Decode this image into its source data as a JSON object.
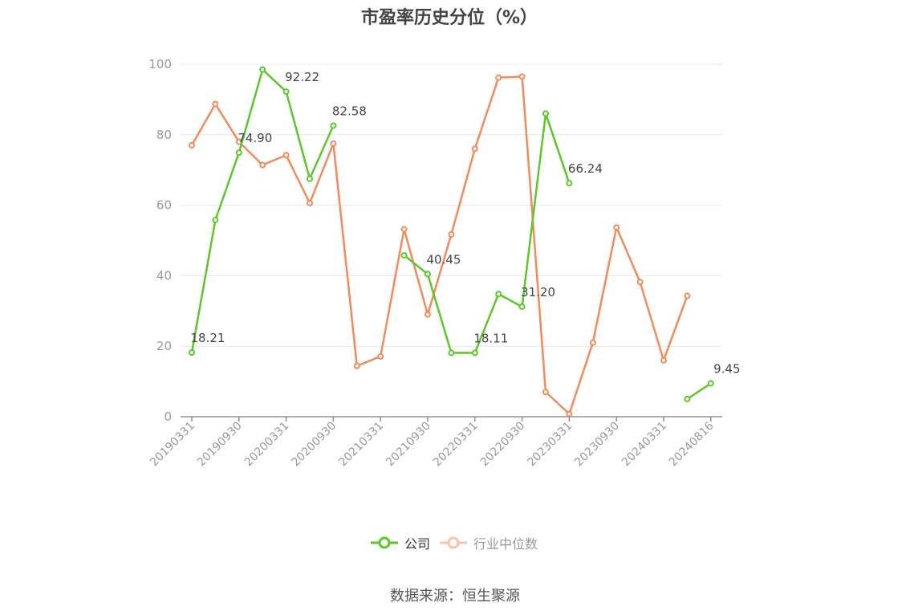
{
  "chart_data": {
    "type": "line",
    "title": "市盈率历史分位（%）",
    "xlabel": "",
    "ylabel": "",
    "ylim": [
      0,
      100
    ],
    "yticks": [
      "0",
      "20",
      "40",
      "60",
      "80",
      "100"
    ],
    "grid": true,
    "legend_position": "bottom",
    "categories": [
      "20190331",
      "20190630",
      "20190930",
      "20191231",
      "20200331",
      "20200630",
      "20200930",
      "20201231",
      "20210331",
      "20210630",
      "20210930",
      "20211231",
      "20220331",
      "20220630",
      "20220930",
      "20221231",
      "20230331",
      "20230630",
      "20230930",
      "20231231",
      "20240331",
      "20240630",
      "20240816"
    ],
    "x_tick_labels": [
      "20190331",
      "20190930",
      "20200331",
      "20200930",
      "20210331",
      "20210930",
      "20220331",
      "20220930",
      "20230331",
      "20230930",
      "20240331",
      "20240816"
    ],
    "series": [
      {
        "name": "公司",
        "color": "#5cc72a",
        "values": [
          18.21,
          55.8,
          74.9,
          98.5,
          92.22,
          67.5,
          82.58,
          null,
          null,
          45.8,
          40.45,
          18.1,
          18.11,
          34.8,
          31.2,
          86.0,
          66.24,
          null,
          null,
          null,
          null,
          5.0,
          9.45
        ],
        "labels": [
          {
            "index": 0,
            "text": "18.21"
          },
          {
            "index": 2,
            "text": "74.90"
          },
          {
            "index": 4,
            "text": "92.22"
          },
          {
            "index": 6,
            "text": "82.58"
          },
          {
            "index": 10,
            "text": "40.45"
          },
          {
            "index": 12,
            "text": "18.11"
          },
          {
            "index": 14,
            "text": "31.20"
          },
          {
            "index": 16,
            "text": "66.24"
          },
          {
            "index": 22,
            "text": "9.45"
          }
        ]
      },
      {
        "name": "行业中位数",
        "color": "#f28b5b",
        "values": [
          77.0,
          88.7,
          78.0,
          71.4,
          74.2,
          60.6,
          77.5,
          14.4,
          17.1,
          53.2,
          29.0,
          51.7,
          76.0,
          96.2,
          96.5,
          7.0,
          0.8,
          21.0,
          53.7,
          38.2,
          16.0,
          34.3,
          null
        ]
      }
    ]
  },
  "legend": {
    "company_label": "公司",
    "industry_label": "行业中位数"
  },
  "source_note": "数据来源：恒生聚源"
}
